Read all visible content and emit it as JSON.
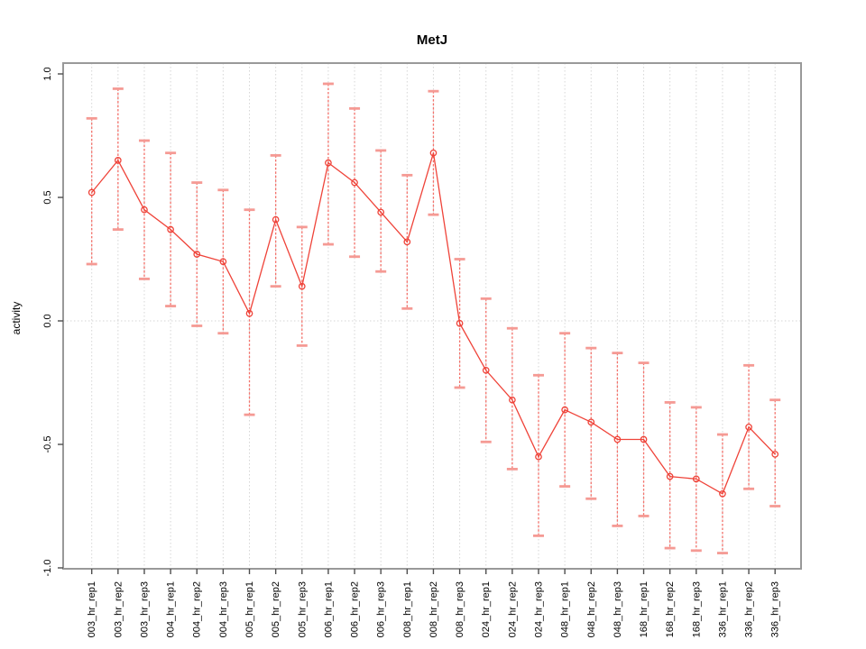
{
  "title": "MetJ",
  "chart_data": {
    "type": "line",
    "title": "MetJ",
    "xlabel": "",
    "ylabel": "activity",
    "ylim": [
      -1.0,
      1.0
    ],
    "y_ticks": [
      {
        "label": "1.0",
        "value": 1.0
      },
      {
        "label": "0.5",
        "value": 0.5
      },
      {
        "label": "0.0",
        "value": 0.0
      },
      {
        "label": "-0.5",
        "value": -0.5
      },
      {
        "label": "-1.0",
        "value": -1.0
      }
    ],
    "grid": "vertical dotted line at every category; horizontal dotted line at 0 only",
    "legend_position": "none",
    "marker": "open-circle",
    "error_bars": "dashed stems with flat caps",
    "categories": [
      "003_hr_rep1",
      "003_hr_rep2",
      "003_hr_rep3",
      "004_hr_rep1",
      "004_hr_rep2",
      "004_hr_rep3",
      "005_hr_rep1",
      "005_hr_rep2",
      "005_hr_rep3",
      "006_hr_rep1",
      "006_hr_rep2",
      "006_hr_rep3",
      "008_hr_rep1",
      "008_hr_rep2",
      "008_hr_rep3",
      "024_hr_rep1",
      "024_hr_rep2",
      "024_hr_rep3",
      "048_hr_rep1",
      "048_hr_rep2",
      "048_hr_rep3",
      "168_hr_rep1",
      "168_hr_rep2",
      "168_hr_rep3",
      "336_hr_rep1",
      "336_hr_rep2",
      "336_hr_rep3"
    ],
    "series": [
      {
        "name": "activity",
        "values": [
          0.52,
          0.65,
          0.45,
          0.37,
          0.27,
          0.24,
          0.03,
          0.41,
          0.14,
          0.64,
          0.56,
          0.44,
          0.32,
          0.68,
          -0.01,
          -0.2,
          -0.32,
          -0.55,
          -0.36,
          -0.41,
          -0.48,
          -0.48,
          -0.63,
          -0.64,
          -0.7,
          -0.43,
          -0.54
        ],
        "error_low": [
          0.23,
          0.37,
          0.17,
          0.06,
          -0.02,
          -0.05,
          -0.38,
          0.14,
          -0.1,
          0.31,
          0.26,
          0.2,
          0.05,
          0.43,
          -0.27,
          -0.49,
          -0.6,
          -0.87,
          -0.67,
          -0.72,
          -0.83,
          -0.79,
          -0.92,
          -0.93,
          -0.94,
          -0.68,
          -0.75
        ],
        "error_high": [
          0.82,
          0.94,
          0.73,
          0.68,
          0.56,
          0.53,
          0.45,
          0.67,
          0.38,
          0.96,
          0.86,
          0.69,
          0.59,
          0.93,
          0.25,
          0.09,
          -0.03,
          -0.22,
          -0.05,
          -0.11,
          -0.13,
          -0.17,
          -0.33,
          -0.35,
          -0.46,
          -0.18,
          -0.32
        ]
      }
    ],
    "colors": {
      "series_line": "#ef4339",
      "marker_stroke": "#ef4339",
      "error_stem": "#f4726b",
      "error_cap": "#f59a94",
      "gridline": "#d6d6d6",
      "box_border": "#999999",
      "tick_mark": "#4d4d4d",
      "tick_label": "#000000",
      "background": "#ffffff"
    }
  }
}
